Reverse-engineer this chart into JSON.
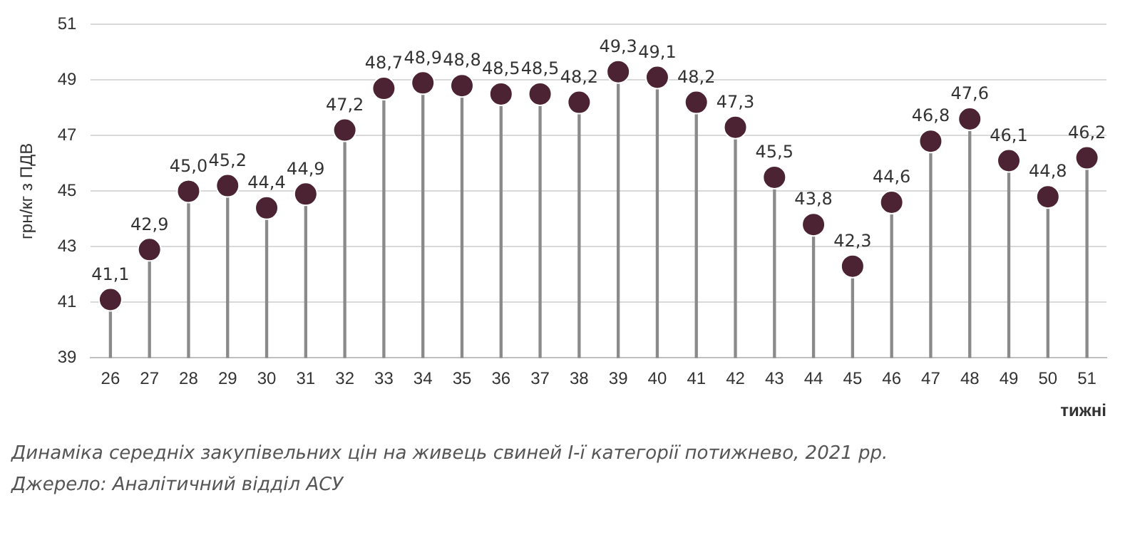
{
  "chart_data": {
    "type": "lollipop",
    "xlabel": "тижні",
    "ylabel": "грн/кг з ПДВ",
    "categories": [
      "26",
      "27",
      "28",
      "29",
      "30",
      "31",
      "32",
      "33",
      "34",
      "35",
      "36",
      "37",
      "38",
      "39",
      "40",
      "41",
      "42",
      "43",
      "44",
      "45",
      "46",
      "47",
      "48",
      "49",
      "50",
      "51"
    ],
    "values": [
      41.1,
      42.9,
      45.0,
      45.2,
      44.4,
      44.9,
      47.2,
      48.7,
      48.9,
      48.8,
      48.5,
      48.5,
      48.2,
      49.3,
      49.1,
      48.2,
      47.3,
      45.5,
      43.8,
      42.3,
      44.6,
      46.8,
      47.6,
      46.1,
      44.8,
      46.2
    ],
    "value_labels": [
      "41,1",
      "42,9",
      "45,0",
      "45,2",
      "44,4",
      "44,9",
      "47,2",
      "48,7",
      "48,9",
      "48,8",
      "48,5",
      "48,5",
      "48,2",
      "49,3",
      "49,1",
      "48,2",
      "47,3",
      "45,5",
      "43,8",
      "42,3",
      "44,6",
      "46,8",
      "47,6",
      "46,1",
      "44,8",
      "46,2"
    ],
    "color": "#4b2333",
    "ylim": [
      39,
      51
    ],
    "yticks": [
      39,
      41,
      43,
      45,
      47,
      49,
      51
    ],
    "grid": "y",
    "marker": "circle",
    "annotations": [
      "Динаміка середніх закупівельних цін на живець свиней І-ї категорії потижнево, 2021 рр.",
      "Джерело: Аналітичний відділ АСУ"
    ]
  }
}
